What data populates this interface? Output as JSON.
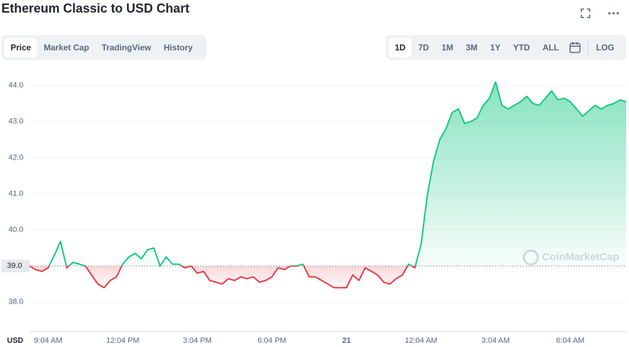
{
  "tabs": [
    "Price",
    "Market Cap",
    "TradingView",
    "History"
  ],
  "ranges": [
    "1D",
    "7D",
    "1M",
    "3M",
    "1Y",
    "YTD",
    "ALL"
  ],
  "log_label": "LOG",
  "watermark": "CoinMarketCap",
  "chart_data": {
    "type": "line",
    "title": "Ethereum Classic to USD Chart",
    "currency": "USD",
    "up_color": "#16c784",
    "down_color": "#ea3943",
    "baseline": {
      "value": 39,
      "label": "39.0"
    },
    "ylim": [
      37.26,
      44.43
    ],
    "yticks": [
      {
        "value": 38,
        "label": "38.0"
      },
      {
        "value": 40,
        "label": "40.0"
      },
      {
        "value": 41,
        "label": "41.0"
      },
      {
        "value": 42,
        "label": "42.0"
      },
      {
        "value": 43,
        "label": "43.0"
      },
      {
        "value": 44,
        "label": "44.0"
      }
    ],
    "grid": true,
    "categories": [
      null,
      null,
      null,
      "9:04 AM",
      null,
      null,
      null,
      null,
      null,
      null,
      null,
      null,
      null,
      null,
      null,
      "12:04 PM",
      null,
      null,
      null,
      null,
      null,
      null,
      null,
      null,
      null,
      null,
      null,
      "3:04 PM",
      null,
      null,
      null,
      null,
      null,
      null,
      null,
      null,
      null,
      null,
      null,
      "6:04 PM",
      null,
      null,
      null,
      null,
      null,
      null,
      null,
      null,
      null,
      null,
      null,
      "21",
      null,
      null,
      null,
      null,
      null,
      null,
      null,
      null,
      null,
      null,
      null,
      "12:04 AM",
      null,
      null,
      null,
      null,
      null,
      null,
      null,
      null,
      null,
      null,
      null,
      "3:04 AM",
      null,
      null,
      null,
      null,
      null,
      null,
      null,
      null,
      null,
      null,
      null,
      "6:04 AM",
      null,
      null,
      null,
      null,
      null,
      null,
      null,
      null,
      null
    ],
    "values": [
      39.0,
      38.9,
      38.85,
      38.95,
      39.3,
      39.68,
      38.95,
      39.1,
      39.05,
      39.0,
      38.75,
      38.5,
      38.4,
      38.6,
      38.7,
      39.05,
      39.25,
      39.35,
      39.2,
      39.45,
      39.5,
      39.0,
      39.25,
      39.05,
      39.05,
      38.95,
      39.0,
      38.8,
      38.85,
      38.6,
      38.55,
      38.5,
      38.65,
      38.6,
      38.7,
      38.65,
      38.7,
      38.55,
      38.6,
      38.7,
      38.95,
      38.9,
      39.0,
      39.0,
      39.05,
      38.7,
      38.7,
      38.6,
      38.5,
      38.4,
      38.4,
      38.4,
      38.75,
      38.6,
      38.95,
      38.85,
      38.75,
      38.55,
      38.5,
      38.65,
      38.75,
      39.05,
      38.95,
      39.6,
      40.95,
      41.9,
      42.5,
      42.8,
      43.25,
      43.35,
      42.95,
      43.0,
      43.1,
      43.45,
      43.65,
      44.1,
      43.45,
      43.35,
      43.45,
      43.55,
      43.7,
      43.5,
      43.45,
      43.65,
      43.85,
      43.6,
      43.65,
      43.55,
      43.35,
      43.15,
      43.3,
      43.45,
      43.35,
      43.45,
      43.5,
      43.6,
      43.55
    ]
  }
}
